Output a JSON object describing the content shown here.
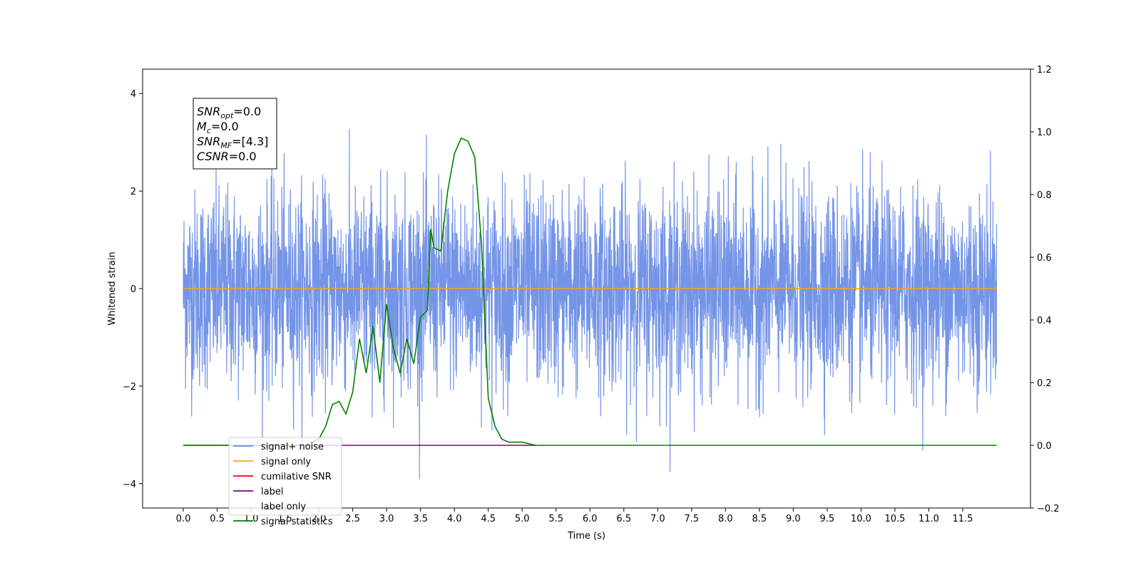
{
  "chart_data": {
    "type": "line",
    "xlabel": "Time (s)",
    "ylabel": "Whitened strain",
    "xlim": [
      -0.6,
      12.5
    ],
    "ylim": [
      -4.5,
      4.5
    ],
    "y2lim": [
      -0.2,
      1.2
    ],
    "x_ticks": [
      "0.0",
      "0.5",
      "1.0",
      "1.5",
      "2.0",
      "2.5",
      "3.0",
      "3.5",
      "4.0",
      "4.5",
      "5.0",
      "5.5",
      "6.0",
      "6.5",
      "7.0",
      "7.5",
      "8.0",
      "8.5",
      "9.0",
      "9.5",
      "10.0",
      "10.5",
      "11.0",
      "11.5"
    ],
    "y_ticks": [
      "4",
      "2",
      "0",
      "−2",
      "−4"
    ],
    "y2_ticks": [
      "1.2",
      "1.0",
      "0.8",
      "0.6",
      "0.4",
      "0.2",
      "0.0",
      "−0.2"
    ],
    "legend_position": "lower-left",
    "info_box": [
      {
        "main": "SNR",
        "sub": "opt",
        "rest": "=0.0"
      },
      {
        "main": "M",
        "sub": "c",
        "rest": "=0.0"
      },
      {
        "main": "SNR",
        "sub": "MF",
        "rest": "=[4.3]"
      },
      {
        "main": "CSNR",
        "sub": "",
        "rest": "=0.0"
      }
    ],
    "series": [
      {
        "name": "signal+ noise",
        "color": "#6d8ee6",
        "axis": "left",
        "description_values": "noise_samples",
        "x_range": [
          0.0,
          12.0
        ],
        "std": 1.0,
        "y_range_observed": [
          -3.9,
          4.1
        ]
      },
      {
        "name": "signal only",
        "color": "#ffa500",
        "axis": "left",
        "x": [
          0.0,
          12.0
        ],
        "y": [
          0.0,
          0.0
        ]
      },
      {
        "name": "cumilative SNR",
        "color": "#ff0000",
        "axis": "right",
        "x": [],
        "y": []
      },
      {
        "name": "label",
        "color": "#800080",
        "axis": "right",
        "x": [
          0.0,
          5.2
        ],
        "y": [
          0.0,
          0.0
        ]
      },
      {
        "name": "label only",
        "color": "#ffffff",
        "axis": "right",
        "x": [],
        "y": []
      },
      {
        "name": "signal statistics",
        "color": "#008000",
        "axis": "right",
        "x": [
          0.0,
          0.5,
          1.0,
          1.5,
          1.8,
          2.0,
          2.1,
          2.2,
          2.3,
          2.4,
          2.5,
          2.6,
          2.7,
          2.8,
          2.9,
          3.0,
          3.1,
          3.2,
          3.3,
          3.4,
          3.5,
          3.6,
          3.65,
          3.7,
          3.8,
          3.9,
          4.0,
          4.1,
          4.2,
          4.3,
          4.4,
          4.5,
          4.6,
          4.7,
          4.8,
          4.9,
          5.0,
          5.2,
          6.0,
          7.0,
          8.0,
          9.0,
          10.0,
          11.0,
          12.0
        ],
        "y": [
          0.0,
          0.0,
          0.0,
          0.0,
          0.0,
          0.02,
          0.06,
          0.13,
          0.14,
          0.1,
          0.17,
          0.34,
          0.23,
          0.38,
          0.2,
          0.45,
          0.31,
          0.23,
          0.34,
          0.26,
          0.41,
          0.43,
          0.69,
          0.63,
          0.62,
          0.81,
          0.93,
          0.98,
          0.97,
          0.92,
          0.64,
          0.15,
          0.06,
          0.02,
          0.01,
          0.01,
          0.01,
          0.0,
          0.0,
          0.0,
          0.0,
          0.0,
          0.0,
          0.0,
          0.0
        ]
      }
    ]
  }
}
